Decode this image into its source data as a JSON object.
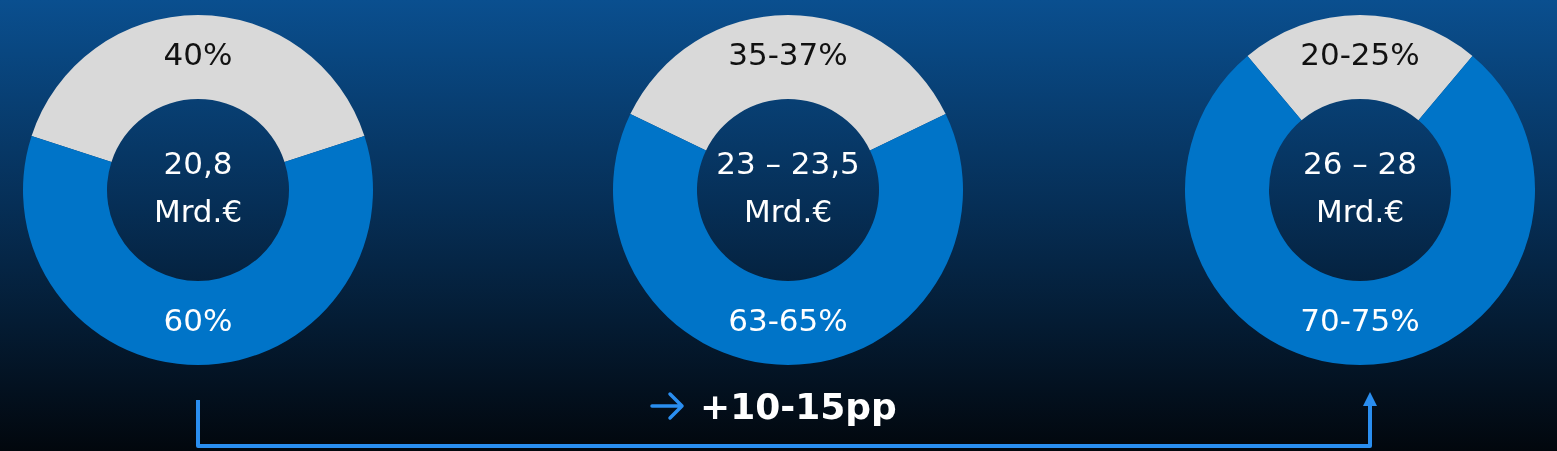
{
  "chart_data": [
    {
      "type": "donut",
      "categories": [
        null,
        null
      ],
      "values": [
        40,
        60
      ],
      "colors": [
        "#d9d9d9",
        "#0074c8"
      ],
      "value_labels": [
        "40%",
        "60%"
      ],
      "annotations": [
        "20,8\nMrd.€"
      ]
    },
    {
      "type": "donut",
      "categories": [
        null,
        null
      ],
      "values": [
        35,
        63
      ],
      "colors": [
        "#d9d9d9",
        "#0074c8"
      ],
      "value_labels": [
        "35-37%",
        "63-65%"
      ],
      "annotations": [
        "23 – 23,5\nMrd.€"
      ]
    },
    {
      "type": "donut",
      "categories": [
        null,
        null
      ],
      "values": [
        20,
        70
      ],
      "colors": [
        "#d9d9d9",
        "#0074c8"
      ],
      "value_labels": [
        "20-25%",
        "70-75%"
      ],
      "annotations": [
        "26 – 28\nMrd.€"
      ]
    },
    {
      "type": "other",
      "annotations": [
        "+10-15pp"
      ]
    }
  ]
}
